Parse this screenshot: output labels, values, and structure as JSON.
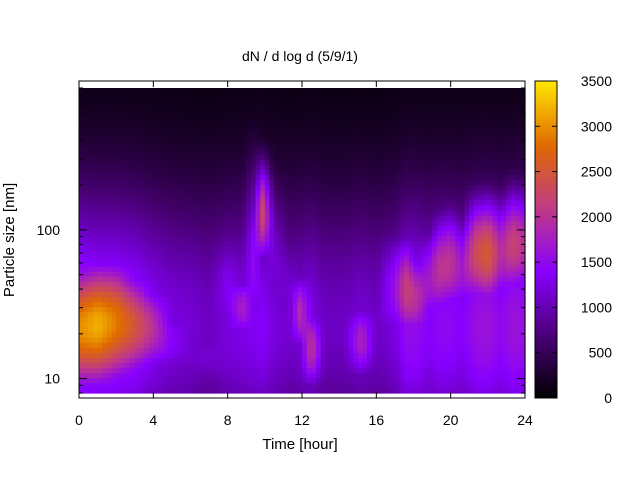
{
  "chart_data": {
    "type": "heatmap",
    "title": "dN / d log d (5/9/1)",
    "xlabel": "Time [hour]",
    "ylabel": "Particle size [nm]",
    "xlim": [
      0,
      24
    ],
    "ylim": [
      8,
      900
    ],
    "yscale": "log",
    "xticks": [
      "0",
      "4",
      "8",
      "12",
      "16",
      "20",
      "24"
    ],
    "yticks": [
      "10",
      "100"
    ],
    "colorbar": {
      "range": [
        0,
        3500
      ],
      "ticks": [
        "0",
        "500",
        "1000",
        "1500",
        "2000",
        "2500",
        "3000",
        "3500"
      ],
      "colormap": [
        "#000000",
        "#4b0079",
        "#8800ff",
        "#c03a86",
        "#e06a00",
        "#ffe600"
      ]
    },
    "columns": [
      {
        "t": 0.0,
        "lo": 1700,
        "center": 22,
        "width": 0.45,
        "peak": 3000
      },
      {
        "t": 1.0,
        "lo": 1600,
        "center": 23,
        "width": 0.45,
        "peak": 3200
      },
      {
        "t": 2.0,
        "lo": 1600,
        "center": 24,
        "width": 0.45,
        "peak": 2900
      },
      {
        "t": 3.0,
        "lo": 1500,
        "center": 23,
        "width": 0.4,
        "peak": 2500
      },
      {
        "t": 4.0,
        "lo": 1300,
        "center": 22,
        "width": 0.35,
        "peak": 2000
      },
      {
        "t": 5.0,
        "lo": 1150,
        "center": 18,
        "width": 0.35,
        "peak": 1400
      },
      {
        "t": 6.0,
        "lo": 1100,
        "center": 15,
        "width": 0.35,
        "peak": 1150
      },
      {
        "t": 7.0,
        "lo": 1000,
        "center": 14,
        "width": 0.3,
        "peak": 1150
      },
      {
        "t": 8.0,
        "lo": 1150,
        "center": 40,
        "width": 0.5,
        "peak": 1350
      },
      {
        "t": 8.8,
        "lo": 1200,
        "center": 30,
        "width": 0.25,
        "peak": 1800
      },
      {
        "t": 9.4,
        "lo": 1250,
        "center": 60,
        "width": 0.7,
        "peak": 1500
      },
      {
        "t": 9.9,
        "lo": 1300,
        "center": 130,
        "width": 0.35,
        "peak": 2300
      },
      {
        "t": 10.5,
        "lo": 1150,
        "center": 60,
        "width": 0.6,
        "peak": 1200
      },
      {
        "t": 11.3,
        "lo": 1050,
        "center": 40,
        "width": 0.5,
        "peak": 1150
      },
      {
        "t": 11.9,
        "lo": 1100,
        "center": 28,
        "width": 0.3,
        "peak": 1950
      },
      {
        "t": 12.5,
        "lo": 1200,
        "center": 16,
        "width": 0.3,
        "peak": 2100
      },
      {
        "t": 13.2,
        "lo": 1000,
        "center": 30,
        "width": 0.5,
        "peak": 1050
      },
      {
        "t": 14.3,
        "lo": 1000,
        "center": 20,
        "width": 0.5,
        "peak": 1100
      },
      {
        "t": 15.2,
        "lo": 1100,
        "center": 18,
        "width": 0.3,
        "peak": 1850
      },
      {
        "t": 16.0,
        "lo": 1000,
        "center": 25,
        "width": 0.4,
        "peak": 1100
      },
      {
        "t": 17.0,
        "lo": 1150,
        "center": 40,
        "width": 0.45,
        "peak": 1600
      },
      {
        "t": 17.6,
        "lo": 1450,
        "center": 40,
        "width": 0.4,
        "peak": 2200
      },
      {
        "t": 18.2,
        "lo": 1450,
        "center": 35,
        "width": 0.35,
        "peak": 2000
      },
      {
        "t": 18.8,
        "lo": 1300,
        "center": 45,
        "width": 0.4,
        "peak": 1700
      },
      {
        "t": 19.4,
        "lo": 1400,
        "center": 55,
        "width": 0.4,
        "peak": 2050
      },
      {
        "t": 20.0,
        "lo": 1400,
        "center": 60,
        "width": 0.4,
        "peak": 2050
      },
      {
        "t": 20.6,
        "lo": 1300,
        "center": 55,
        "width": 0.4,
        "peak": 1700
      },
      {
        "t": 21.3,
        "lo": 1500,
        "center": 70,
        "width": 0.4,
        "peak": 2300
      },
      {
        "t": 22.0,
        "lo": 1550,
        "center": 70,
        "width": 0.4,
        "peak": 2600
      },
      {
        "t": 22.7,
        "lo": 1400,
        "center": 70,
        "width": 0.4,
        "peak": 1900
      },
      {
        "t": 23.3,
        "lo": 1550,
        "center": 80,
        "width": 0.4,
        "peak": 2250
      },
      {
        "t": 24.0,
        "lo": 1500,
        "center": 80,
        "width": 0.4,
        "peak": 2000
      }
    ]
  }
}
